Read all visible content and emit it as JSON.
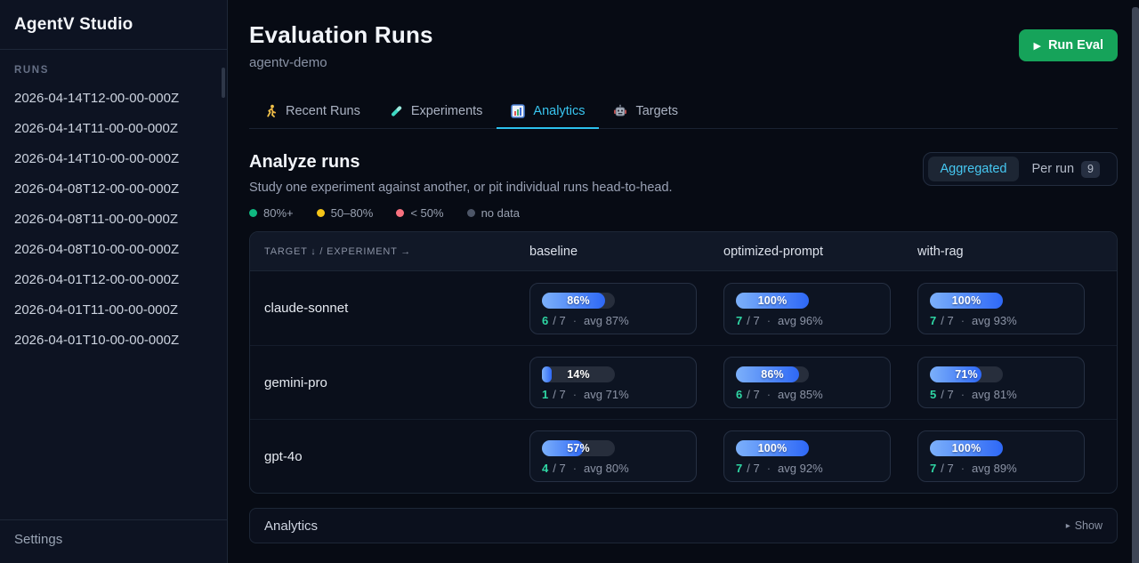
{
  "app": {
    "title": "AgentV Studio"
  },
  "sidebar": {
    "section_label": "RUNS",
    "runs": [
      "2026-04-14T12-00-00-000Z",
      "2026-04-14T11-00-00-000Z",
      "2026-04-14T10-00-00-000Z",
      "2026-04-08T12-00-00-000Z",
      "2026-04-08T11-00-00-000Z",
      "2026-04-08T10-00-00-000Z",
      "2026-04-01T12-00-00-000Z",
      "2026-04-01T11-00-00-000Z",
      "2026-04-01T10-00-00-000Z"
    ],
    "settings_label": "Settings"
  },
  "header": {
    "title": "Evaluation Runs",
    "subtitle": "agentv-demo",
    "run_eval_icon": "▶",
    "run_eval_label": "Run Eval"
  },
  "tabs": [
    {
      "label": "Recent Runs",
      "icon": "runner-icon",
      "active": false
    },
    {
      "label": "Experiments",
      "icon": "test-tube-icon",
      "active": false
    },
    {
      "label": "Analytics",
      "icon": "bar-chart-icon",
      "active": true
    },
    {
      "label": "Targets",
      "icon": "robot-icon",
      "active": false
    }
  ],
  "analyze": {
    "title": "Analyze runs",
    "description": "Study one experiment against another, or pit individual runs head-to-head.",
    "toggle": {
      "aggregated_label": "Aggregated",
      "per_run_label": "Per run",
      "per_run_count": "9"
    }
  },
  "legend": [
    {
      "label": "80%+",
      "color": "#10b981"
    },
    {
      "label": "50–80%",
      "color": "#f5c518"
    },
    {
      "label": "< 50%",
      "color": "#f8717f"
    },
    {
      "label": "no data",
      "color": "#4d5668"
    }
  ],
  "matrix": {
    "corner_label": "TARGET ↓ / EXPERIMENT →",
    "experiments": [
      "baseline",
      "optimized-prompt",
      "with-rag"
    ],
    "stat_separator": "·",
    "rows": [
      {
        "target": "claude-sonnet",
        "cells": [
          {
            "pct": 86,
            "pct_label": "86%",
            "passed": "6",
            "of": "/ 7",
            "avg": "avg 87%"
          },
          {
            "pct": 100,
            "pct_label": "100%",
            "passed": "7",
            "of": "/ 7",
            "avg": "avg 96%"
          },
          {
            "pct": 100,
            "pct_label": "100%",
            "passed": "7",
            "of": "/ 7",
            "avg": "avg 93%"
          }
        ]
      },
      {
        "target": "gemini-pro",
        "cells": [
          {
            "pct": 14,
            "pct_label": "14%",
            "passed": "1",
            "of": "/ 7",
            "avg": "avg 71%"
          },
          {
            "pct": 86,
            "pct_label": "86%",
            "passed": "6",
            "of": "/ 7",
            "avg": "avg 85%"
          },
          {
            "pct": 71,
            "pct_label": "71%",
            "passed": "5",
            "of": "/ 7",
            "avg": "avg 81%"
          }
        ]
      },
      {
        "target": "gpt-4o",
        "cells": [
          {
            "pct": 57,
            "pct_label": "57%",
            "passed": "4",
            "of": "/ 7",
            "avg": "avg 80%"
          },
          {
            "pct": 100,
            "pct_label": "100%",
            "passed": "7",
            "of": "/ 7",
            "avg": "avg 92%"
          },
          {
            "pct": 100,
            "pct_label": "100%",
            "passed": "7",
            "of": "/ 7",
            "avg": "avg 89%"
          }
        ]
      }
    ]
  },
  "footer_panel": {
    "title": "Analytics",
    "action_icon": "▸",
    "action_label": "Show"
  }
}
